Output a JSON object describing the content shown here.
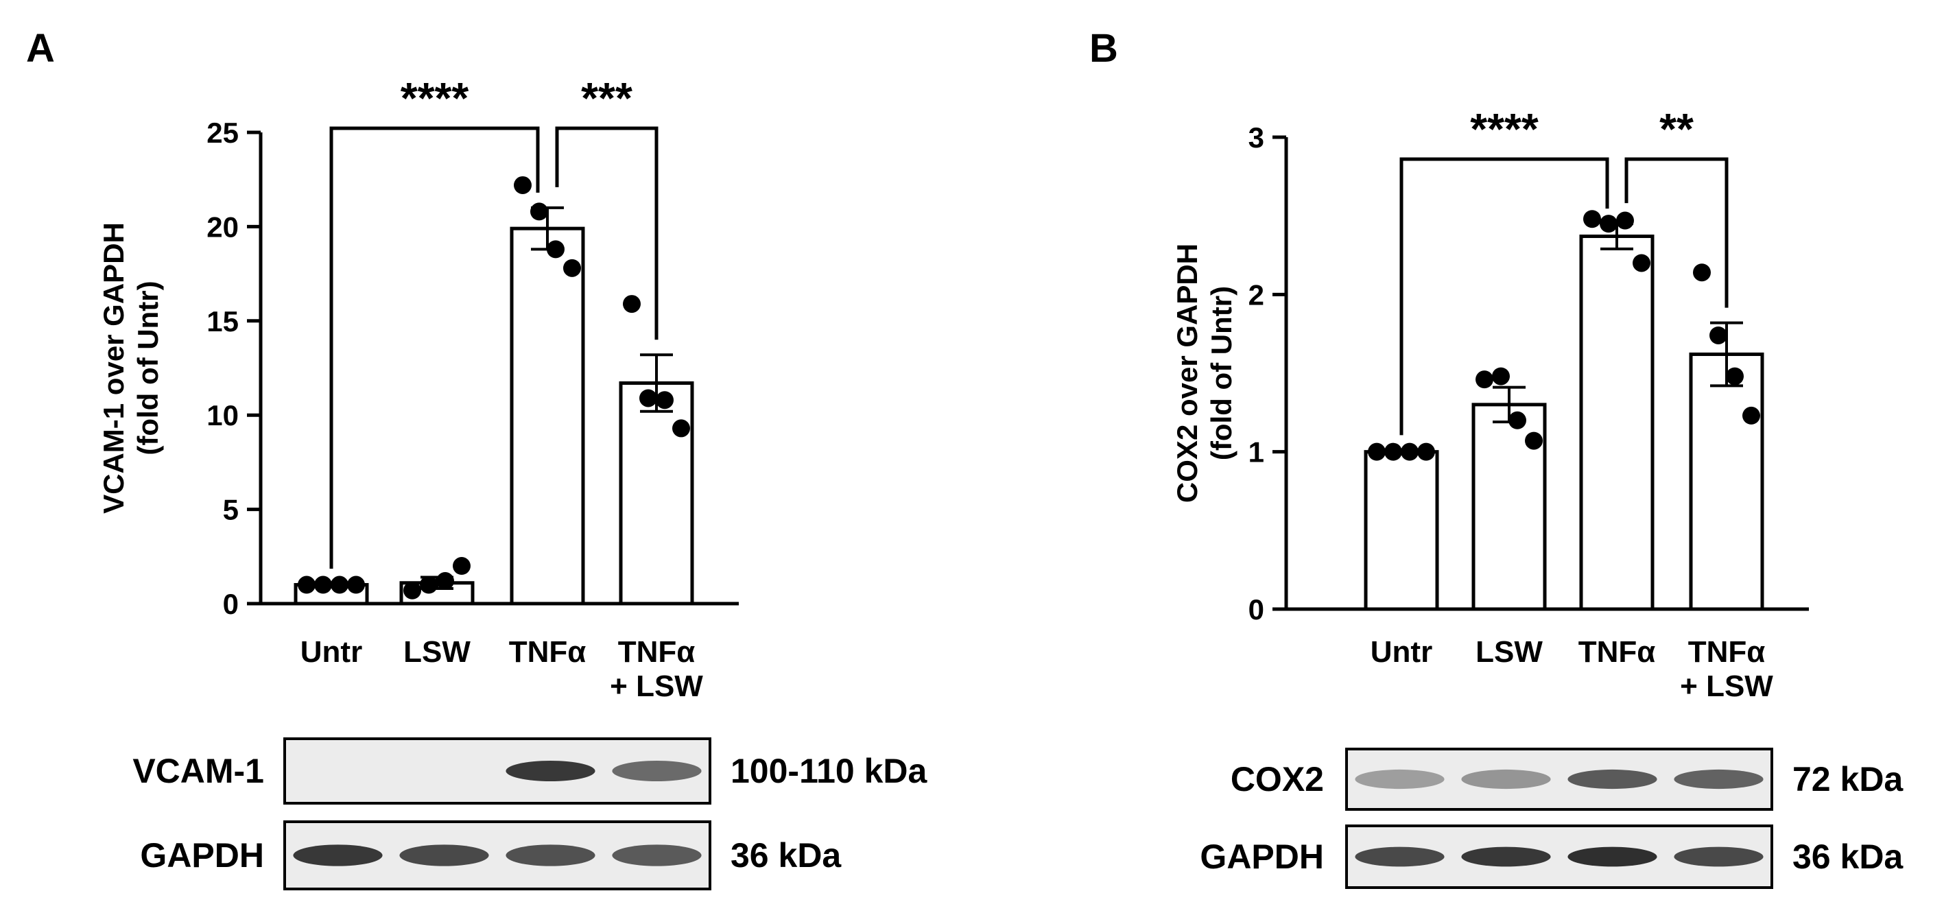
{
  "panels": [
    {
      "letter": "A",
      "ylabel_line1": "VCAM-1 over GAPDH",
      "ylabel_line2": "(fold of Untr)",
      "blot": [
        {
          "protein": "VCAM-1",
          "size": "100-110 kDa",
          "bands": [
            0.0,
            0.0,
            0.85,
            0.55
          ]
        },
        {
          "protein": "GAPDH",
          "size": "36 kDa",
          "bands": [
            0.85,
            0.75,
            0.7,
            0.65
          ]
        }
      ]
    },
    {
      "letter": "B",
      "ylabel_line1": "COX2 over GAPDH",
      "ylabel_line2": "(fold of Untr)",
      "blot": [
        {
          "protein": "COX2",
          "size": "72 kDa",
          "bands": [
            0.25,
            0.3,
            0.65,
            0.6
          ]
        },
        {
          "protein": "GAPDH",
          "size": "36 kDa",
          "bands": [
            0.75,
            0.85,
            0.9,
            0.75
          ]
        }
      ]
    }
  ],
  "chart_data": [
    {
      "type": "bar",
      "panel": "A",
      "categories": [
        [
          "Untr"
        ],
        [
          "LSW"
        ],
        [
          "TNFα"
        ],
        [
          "TNFα",
          "+ LSW"
        ]
      ],
      "values": [
        1.0,
        1.1,
        19.9,
        11.7
      ],
      "sem": [
        0.05,
        0.3,
        1.1,
        1.5
      ],
      "points": [
        [
          1.0,
          1.0,
          1.0,
          1.0
        ],
        [
          0.7,
          1.0,
          1.2,
          2.0
        ],
        [
          22.2,
          20.8,
          18.8,
          17.8
        ],
        [
          15.9,
          10.9,
          10.8,
          9.3
        ]
      ],
      "ylim": [
        0,
        25
      ],
      "yticks": [
        0,
        5,
        10,
        15,
        20,
        25
      ],
      "ylabel": "VCAM-1 over GAPDH (fold of Untr)",
      "significance": [
        {
          "from": 0,
          "to": 2,
          "label": "****"
        },
        {
          "from": 2,
          "to": 3,
          "label": "***"
        }
      ]
    },
    {
      "type": "bar",
      "panel": "B",
      "categories": [
        [
          "Untr"
        ],
        [
          "LSW"
        ],
        [
          "TNFα"
        ],
        [
          "TNFα",
          "+ LSW"
        ]
      ],
      "values": [
        1.0,
        1.3,
        2.37,
        1.62
      ],
      "sem": [
        0.01,
        0.11,
        0.08,
        0.2
      ],
      "points": [
        [
          1.0,
          1.0,
          1.0,
          1.0
        ],
        [
          1.46,
          1.48,
          1.2,
          1.07
        ],
        [
          2.48,
          2.45,
          2.47,
          2.2
        ],
        [
          2.14,
          1.74,
          1.48,
          1.23
        ]
      ],
      "ylim": [
        0,
        3
      ],
      "yticks": [
        0,
        1,
        2,
        3
      ],
      "ylabel": "COX2 over GAPDH (fold of Untr)",
      "significance": [
        {
          "from": 0,
          "to": 2,
          "label": "****"
        },
        {
          "from": 2,
          "to": 3,
          "label": "**"
        }
      ]
    }
  ]
}
